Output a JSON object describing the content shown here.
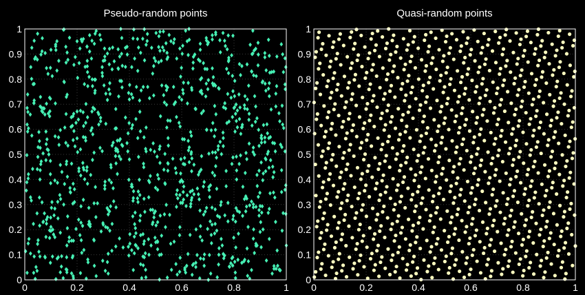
{
  "colors": {
    "background": "#000000",
    "axis_frame": "#ffffff",
    "grid": "#3c3c3c",
    "pseudo_marker": "#46f0b4",
    "quasi_marker": "#ffffc0"
  },
  "chart_data": [
    {
      "type": "scatter",
      "title": "Pseudo-random points",
      "marker": "diamond",
      "xlim": [
        0,
        1
      ],
      "ylim": [
        0,
        1
      ],
      "x_ticks": [
        "0",
        "0.2",
        "0.4",
        "0.6",
        "0.8",
        "1"
      ],
      "y_ticks": [
        "0",
        "0.1",
        "0.2",
        "0.3",
        "0.4",
        "0.5",
        "0.6",
        "0.7",
        "0.8",
        "0.9",
        "1"
      ],
      "grid": true,
      "n_points": 1000,
      "generator": "uniform pseudo-random",
      "points": []
    },
    {
      "type": "scatter",
      "title": "Quasi-random points",
      "marker": "circle",
      "xlim": [
        0,
        1
      ],
      "ylim": [
        0,
        1
      ],
      "x_ticks": [
        "0",
        "0.2",
        "0.4",
        "0.6",
        "0.8",
        "1"
      ],
      "y_ticks": [
        "0",
        "0.1",
        "0.2",
        "0.3",
        "0.4",
        "0.5",
        "0.6",
        "0.7",
        "0.8",
        "0.9",
        "1"
      ],
      "grid": true,
      "n_points": 1000,
      "generator": "low-discrepancy lattice",
      "points": []
    }
  ]
}
